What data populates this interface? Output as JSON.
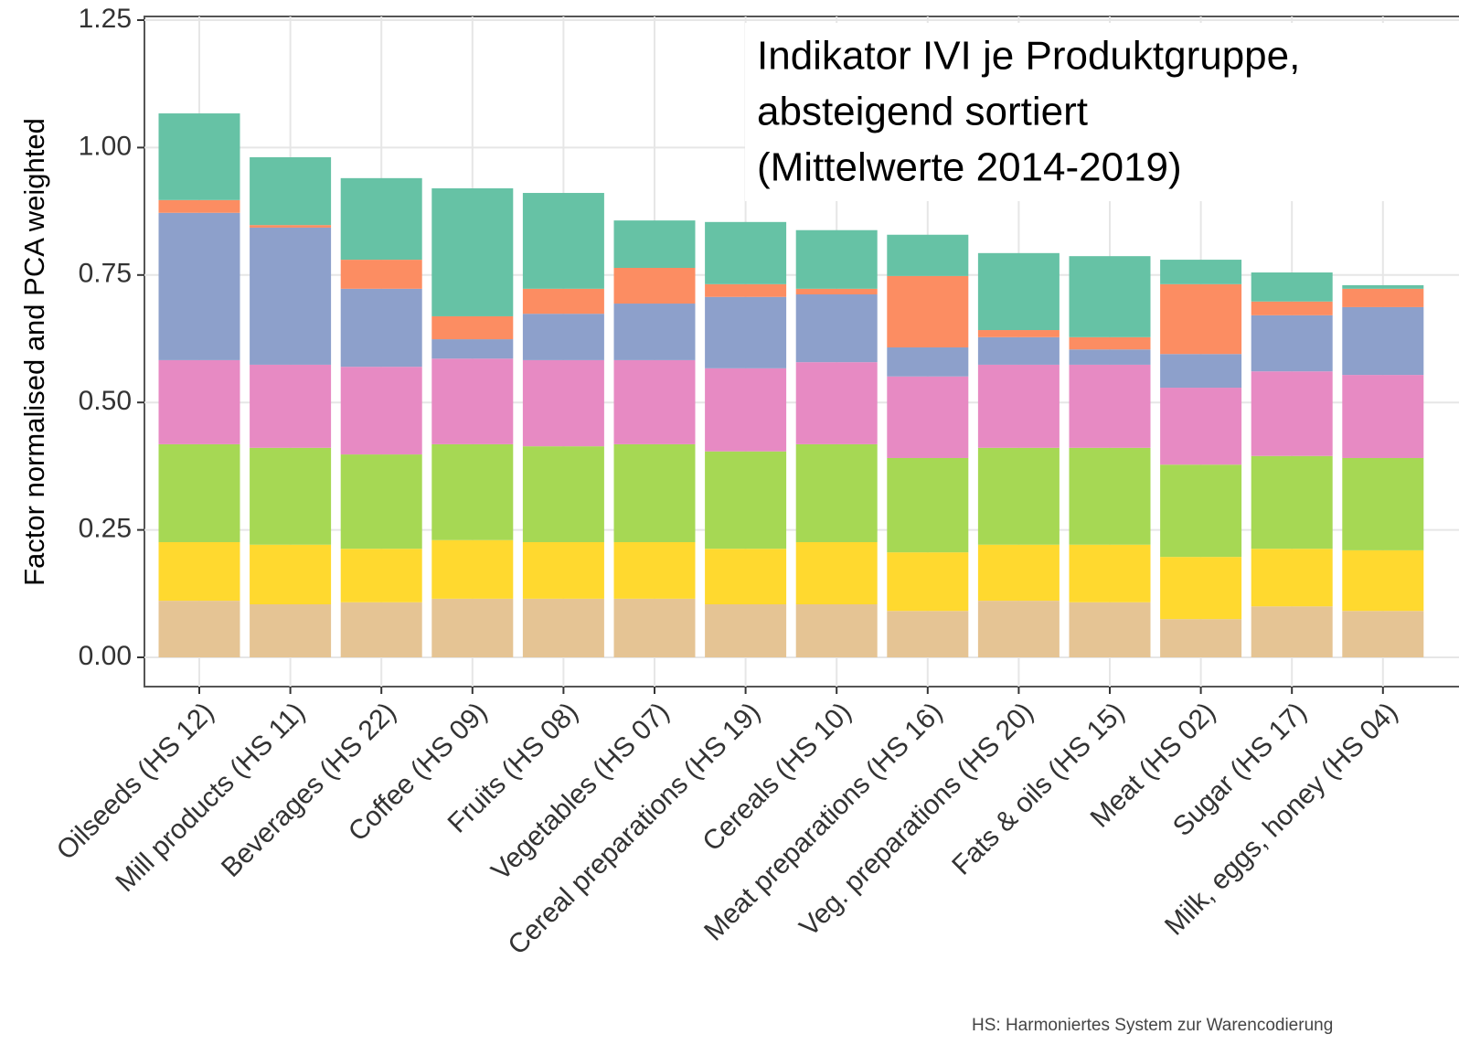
{
  "chart_data": {
    "type": "stacked_bar",
    "title": [
      "Indikator IVI je Produktgruppe,",
      "absteigend sortiert",
      "(Mittelwerte 2014-2019)"
    ],
    "y_label": "Factor normalised and PCA weighted",
    "footnote": "HS: Harmoniertes System zur Warencodierung",
    "categories": [
      "Oilseeds (HS 12)",
      "Mill products (HS 11)",
      "Beverages (HS 22)",
      "Coffee (HS 09)",
      "Fruits (HS 08)",
      "Vegetables (HS 07)",
      "Cereal preparations (HS 19)",
      "Cereals (HS 10)",
      "Meat preparations (HS 16)",
      "Veg. preparations (HS 20)",
      "Fats & oils (HS 15)",
      "Meat (HS 02)",
      "Sugar (HS 17)",
      "Milk, eggs, honey (HS 04)"
    ],
    "series": [
      {
        "color": "#e5c494",
        "values": [
          0.111,
          0.104,
          0.108,
          0.115,
          0.115,
          0.115,
          0.104,
          0.104,
          0.091,
          0.111,
          0.108,
          0.075,
          0.1,
          0.091
        ]
      },
      {
        "color": "#ffd92f",
        "values": [
          0.115,
          0.117,
          0.105,
          0.115,
          0.111,
          0.111,
          0.109,
          0.122,
          0.115,
          0.11,
          0.113,
          0.122,
          0.113,
          0.119
        ]
      },
      {
        "color": "#a6d854",
        "values": [
          0.192,
          0.19,
          0.185,
          0.188,
          0.188,
          0.192,
          0.191,
          0.192,
          0.185,
          0.19,
          0.19,
          0.181,
          0.182,
          0.181
        ]
      },
      {
        "color": "#e78ac3",
        "values": [
          0.165,
          0.163,
          0.172,
          0.168,
          0.169,
          0.165,
          0.163,
          0.161,
          0.16,
          0.163,
          0.163,
          0.151,
          0.166,
          0.163
        ]
      },
      {
        "color": "#8da0cb",
        "values": [
          0.289,
          0.269,
          0.153,
          0.038,
          0.091,
          0.111,
          0.14,
          0.133,
          0.057,
          0.054,
          0.03,
          0.066,
          0.11,
          0.133
        ]
      },
      {
        "color": "#fc8d62",
        "values": [
          0.025,
          0.005,
          0.057,
          0.045,
          0.049,
          0.07,
          0.025,
          0.011,
          0.14,
          0.014,
          0.024,
          0.137,
          0.027,
          0.036
        ]
      },
      {
        "color": "#66c2a5",
        "values": [
          0.17,
          0.133,
          0.16,
          0.251,
          0.188,
          0.093,
          0.122,
          0.115,
          0.081,
          0.151,
          0.159,
          0.048,
          0.057,
          0.007
        ]
      }
    ],
    "ylim": [
      0,
      1.25
    ],
    "yticks": [
      {
        "value": 0,
        "label": "0.00"
      },
      0.25,
      {
        "value": 0.5,
        "label": "0.50"
      },
      0.75,
      {
        "value": 1,
        "label": "1.00"
      },
      1.25
    ],
    "grid": true
  }
}
